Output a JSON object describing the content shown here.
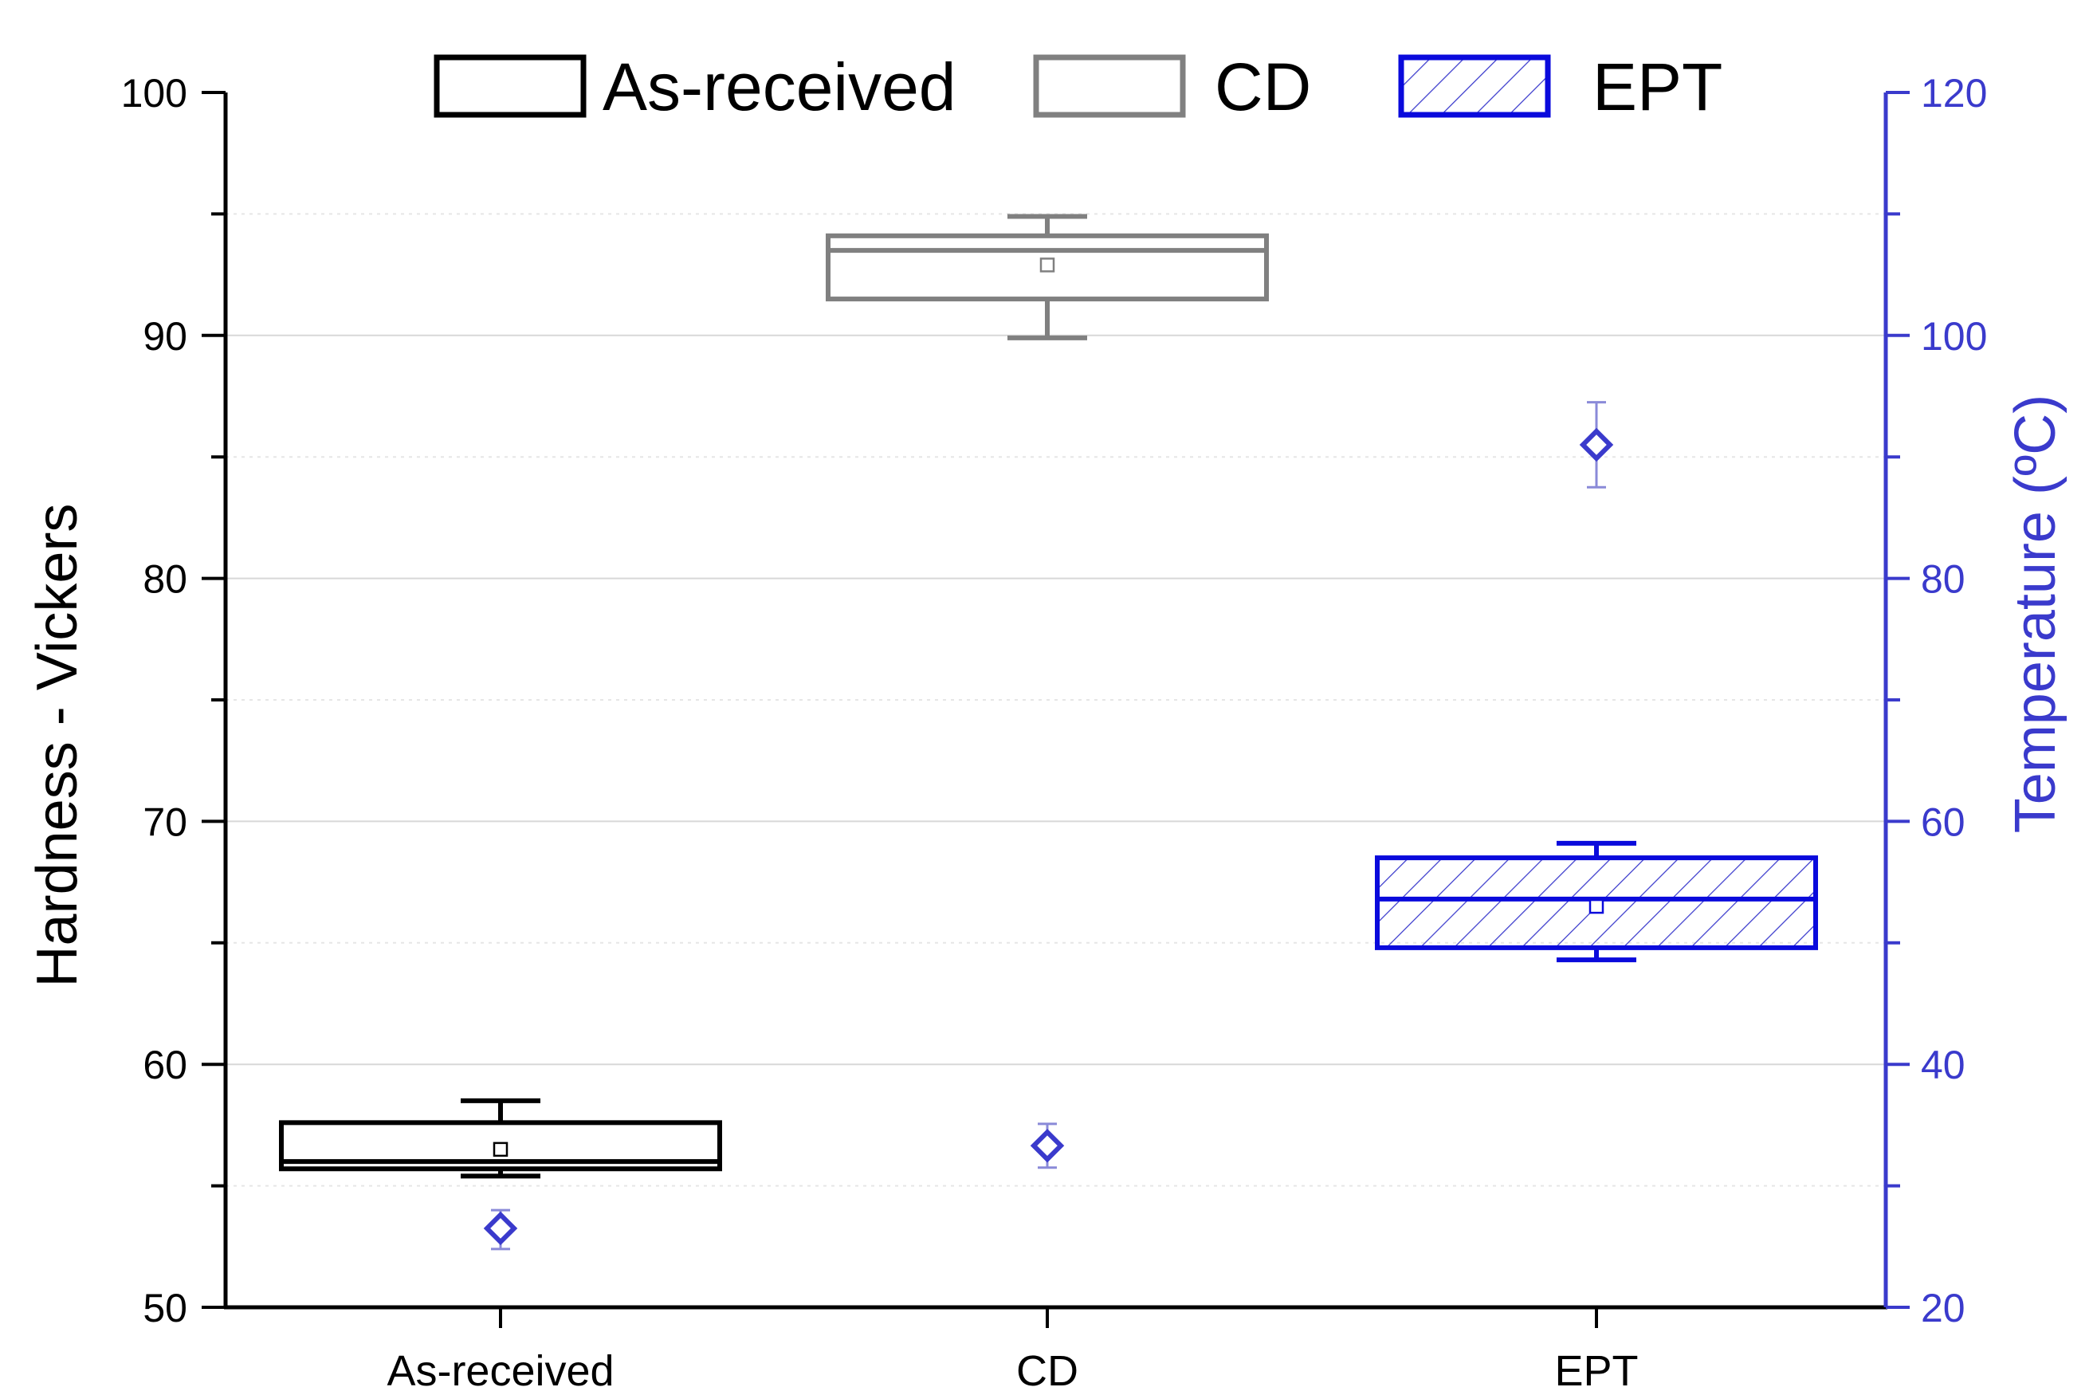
{
  "chart_data": {
    "type": "box",
    "title": "",
    "categories": [
      "As-received",
      "CD",
      "EPT"
    ],
    "x_tick_labels": [
      "As-received",
      "CD",
      "EPT"
    ],
    "left_axis": {
      "label": "Hardness - Vickers",
      "ylim": [
        50,
        100
      ],
      "ticks": [
        "50",
        "60",
        "70",
        "80",
        "90",
        "100"
      ],
      "tick_values": [
        50,
        60,
        70,
        80,
        90,
        100
      ],
      "grid": true
    },
    "right_axis": {
      "label": "Temperature (ºC)",
      "ylim": [
        20,
        120
      ],
      "ticks": [
        "20",
        "40",
        "60",
        "80",
        "100",
        "120"
      ],
      "tick_values": [
        20,
        40,
        60,
        80,
        100,
        120
      ],
      "color": "#3a3acc"
    },
    "legend": {
      "placement": "top",
      "entries": [
        {
          "label": "As-received",
          "color": "#000000",
          "hatch": false
        },
        {
          "label": "CD",
          "color": "#808080",
          "hatch": false
        },
        {
          "label": "EPT",
          "color": "#0a0adc",
          "hatch": true
        }
      ]
    },
    "hardness_boxes": [
      {
        "category": "As-received",
        "min": 55.4,
        "q1": 55.7,
        "median": 56.0,
        "q3": 57.6,
        "max": 58.5,
        "mean": 56.5,
        "color": "#000000",
        "hatch": false
      },
      {
        "category": "CD",
        "min": 89.9,
        "q1": 91.5,
        "median": 93.5,
        "q3": 94.1,
        "max": 94.9,
        "mean": 92.9,
        "color": "#808080",
        "hatch": false
      },
      {
        "category": "EPT",
        "min": 64.3,
        "q1": 64.8,
        "median": 66.8,
        "q3": 68.5,
        "max": 69.1,
        "mean": 66.5,
        "color": "#0a0adc",
        "hatch": true
      }
    ],
    "temperature_series": {
      "name": "Temperature",
      "marker": "diamond",
      "color": "#3a3acc",
      "points": [
        {
          "category": "As-received",
          "value": 26.5,
          "err_low": 24.8,
          "err_high": 28.0
        },
        {
          "category": "CD",
          "value": 33.3,
          "err_low": 31.5,
          "err_high": 35.1
        },
        {
          "category": "EPT",
          "value": 91.0,
          "err_low": 87.5,
          "err_high": 94.5
        }
      ]
    }
  }
}
